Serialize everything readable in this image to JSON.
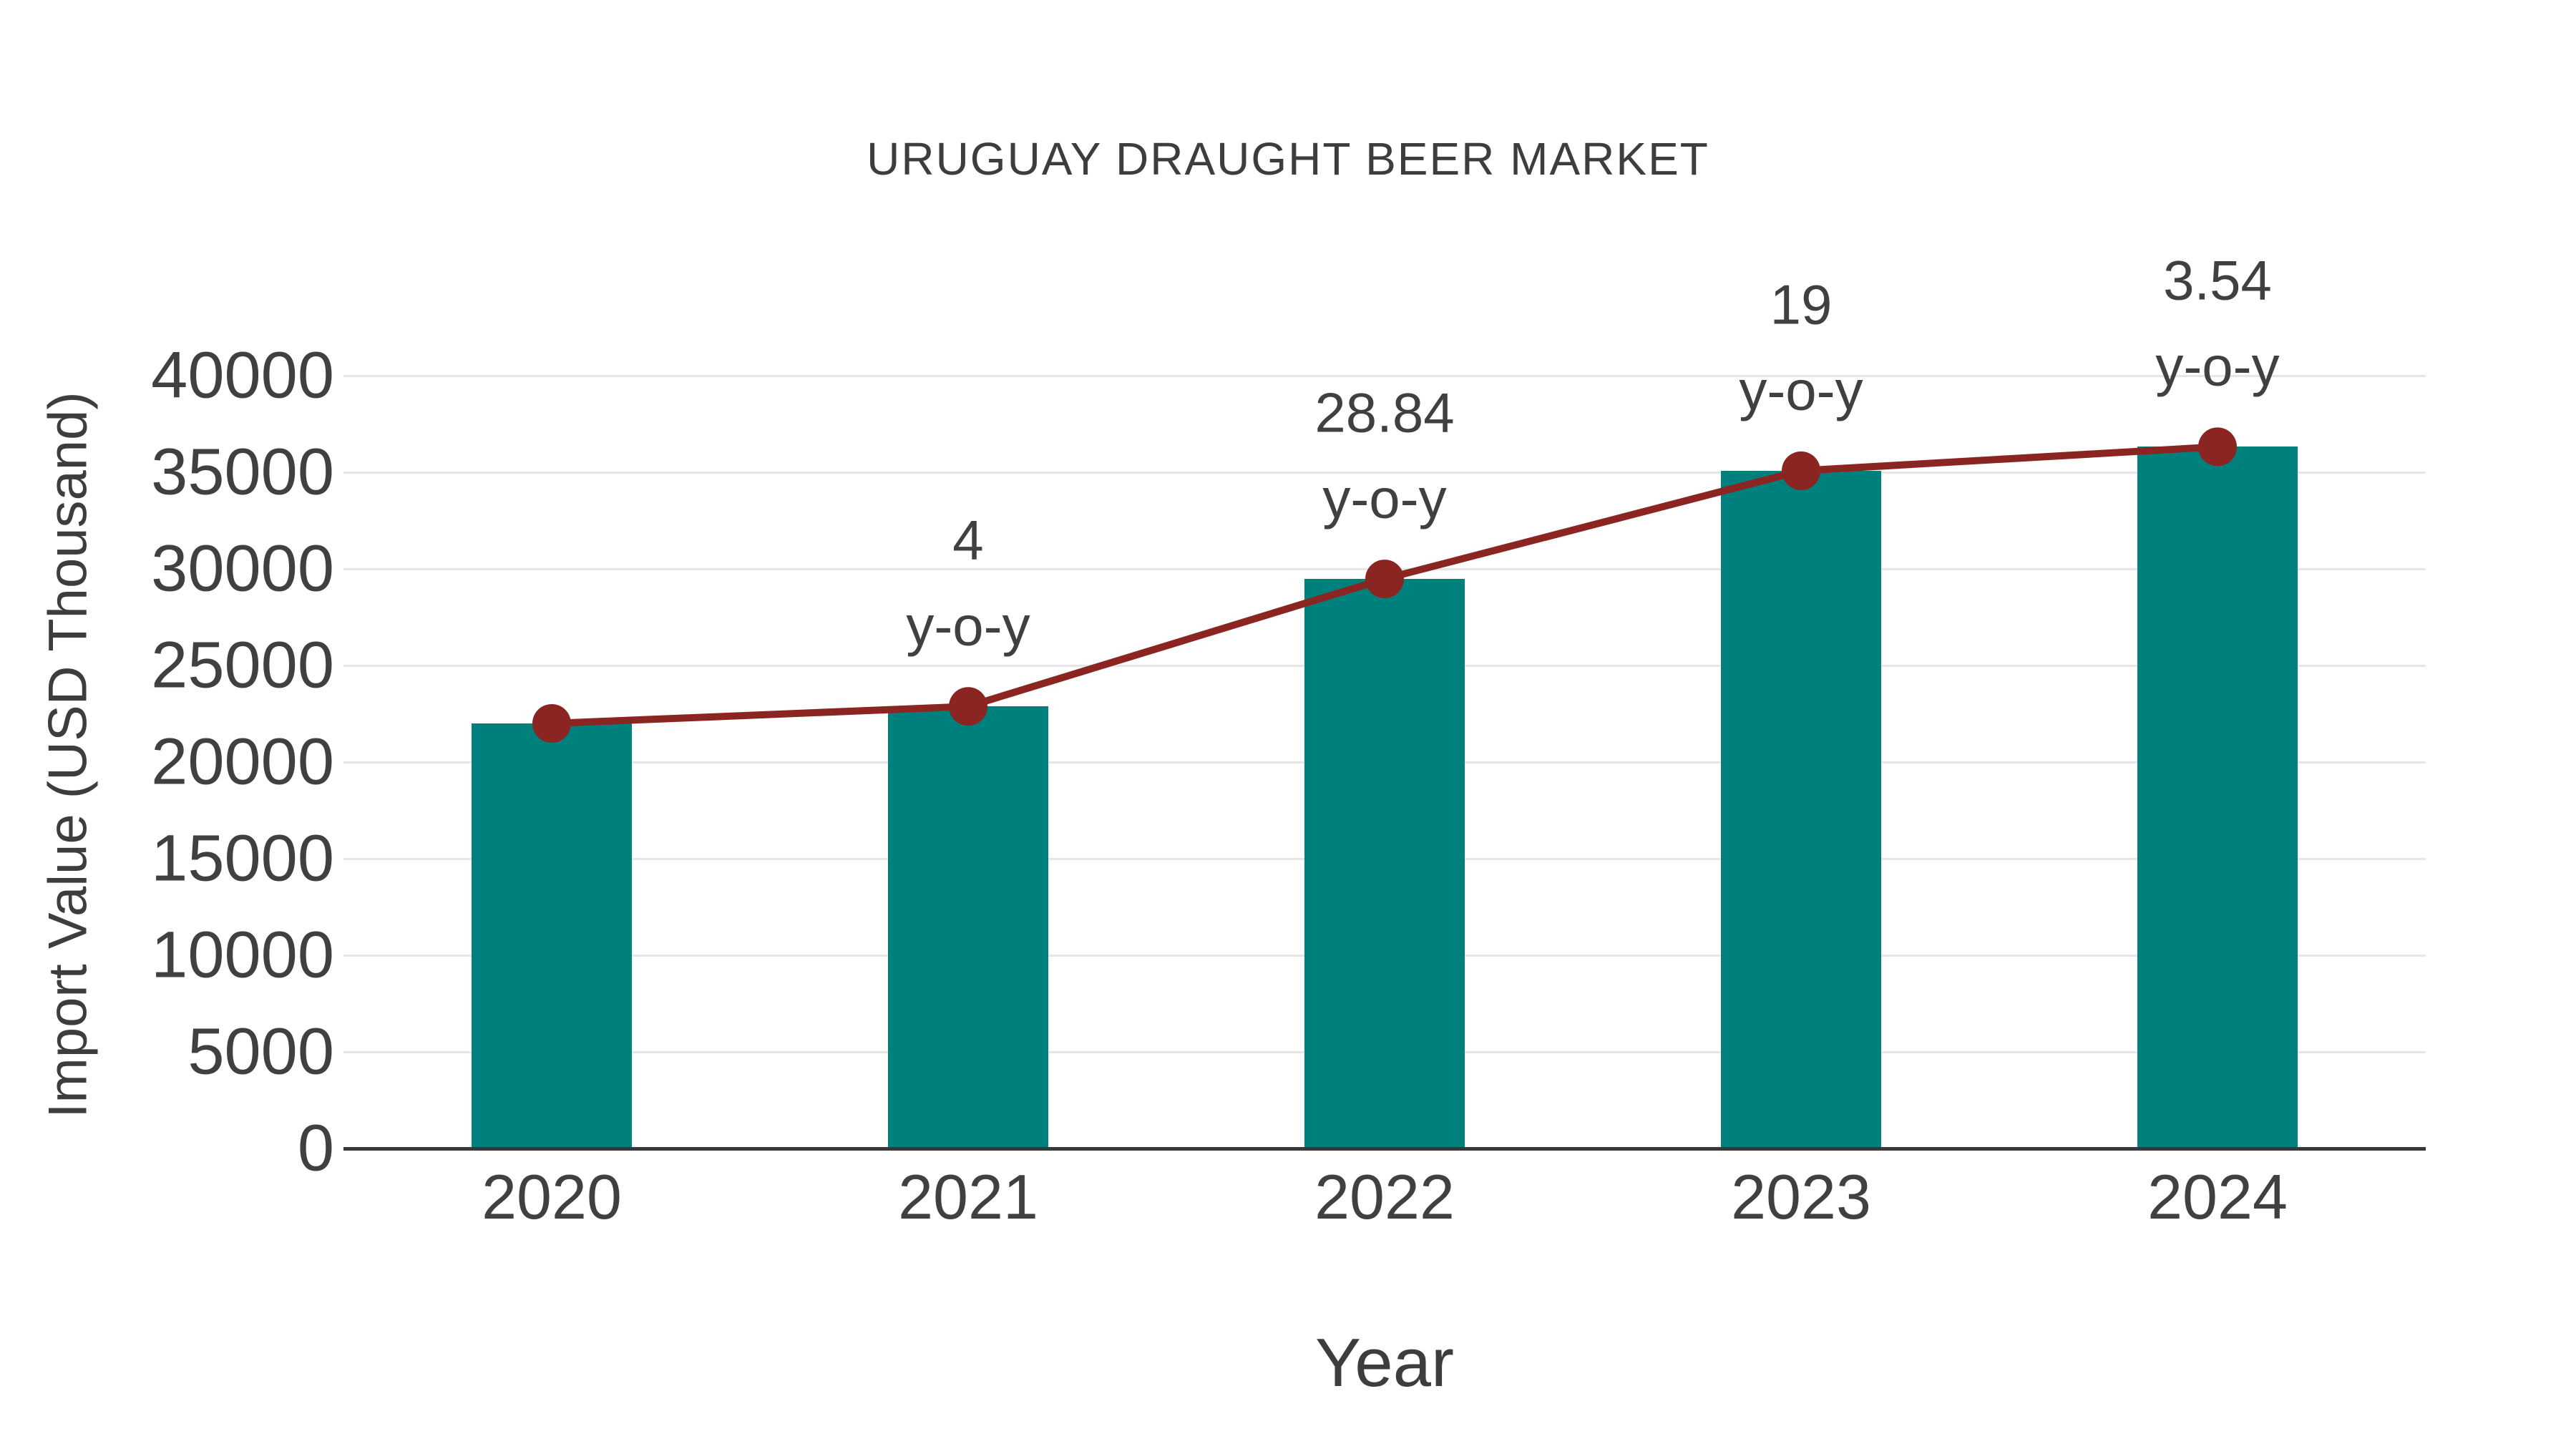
{
  "chart_data": {
    "type": "bar",
    "combo": "bar+line",
    "title": "URUGUAY DRAUGHT BEER MARKET",
    "xlabel": "Year",
    "ylabel": "Import Value (USD Thousand)",
    "categories": [
      "2020",
      "2021",
      "2022",
      "2023",
      "2024"
    ],
    "series": [
      {
        "name": "Import Value",
        "type": "bar",
        "values": [
          22000,
          22880,
          29478,
          35078,
          36320
        ]
      },
      {
        "name": "y-o-y trend",
        "type": "line",
        "values": [
          22000,
          22880,
          29478,
          35078,
          36320
        ]
      }
    ],
    "annotations": [
      {
        "category": "2021",
        "lines": [
          "4",
          "y-o-y"
        ]
      },
      {
        "category": "2022",
        "lines": [
          "28.84",
          "y-o-y"
        ]
      },
      {
        "category": "2023",
        "lines": [
          "19",
          "y-o-y"
        ]
      },
      {
        "category": "2024",
        "lines": [
          "3.54",
          "y-o-y"
        ]
      }
    ],
    "ylim": [
      0,
      40000
    ],
    "ytick_step": 5000,
    "yticks": [
      0,
      5000,
      10000,
      15000,
      20000,
      25000,
      30000,
      35000,
      40000
    ],
    "grid": "horizontal",
    "legend": "none",
    "colors": {
      "bar": "#00807C",
      "line": "#8B2522",
      "marker": "#8B2522",
      "text": "#404040",
      "gridline": "#e6e6e6",
      "axis": "#383838",
      "background": "#ffffff"
    }
  }
}
